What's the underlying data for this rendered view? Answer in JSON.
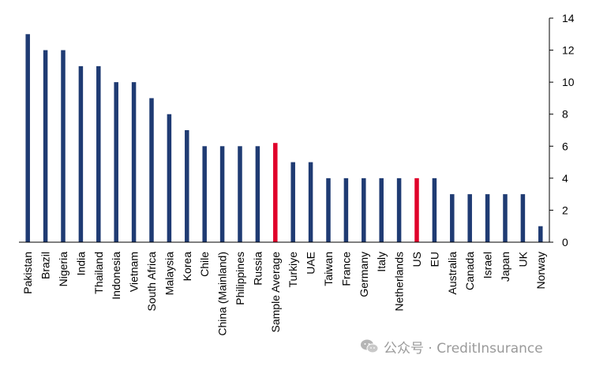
{
  "chart_data": {
    "type": "bar",
    "categories": [
      "Pakistan",
      "Brazil",
      "Nigeria",
      "India",
      "Thailand",
      "Indonesia",
      "Vietnam",
      "South Africa",
      "Malaysia",
      "Korea",
      "Chile",
      "China (Mainland)",
      "Philippines",
      "Russia",
      "Sample Average",
      "Turkiye",
      "UAE",
      "Taiwan",
      "France",
      "Germany",
      "Italy",
      "Netherlands",
      "US",
      "EU",
      "Australia",
      "Canada",
      "Israel",
      "Japan",
      "UK",
      "Norway"
    ],
    "values": [
      13,
      12,
      12,
      11,
      11,
      10,
      10,
      9,
      8,
      7,
      6,
      6,
      6,
      6,
      6.2,
      5,
      5,
      4,
      4,
      4,
      4,
      4,
      4,
      4,
      3,
      3,
      3,
      3,
      3,
      1
    ],
    "highlight_categories": [
      "Sample Average",
      "US"
    ],
    "ylim": [
      0,
      14
    ],
    "yticks": [
      0,
      2,
      4,
      6,
      8,
      10,
      12,
      14
    ],
    "y_axis_side": "right",
    "grid": false,
    "colors": {
      "bar": "#1f3b73",
      "highlight": "#e0002a",
      "axis": "#000000"
    }
  },
  "watermark": {
    "icon": "wechat-icon",
    "text": "公众号 · CreditInsurance"
  }
}
